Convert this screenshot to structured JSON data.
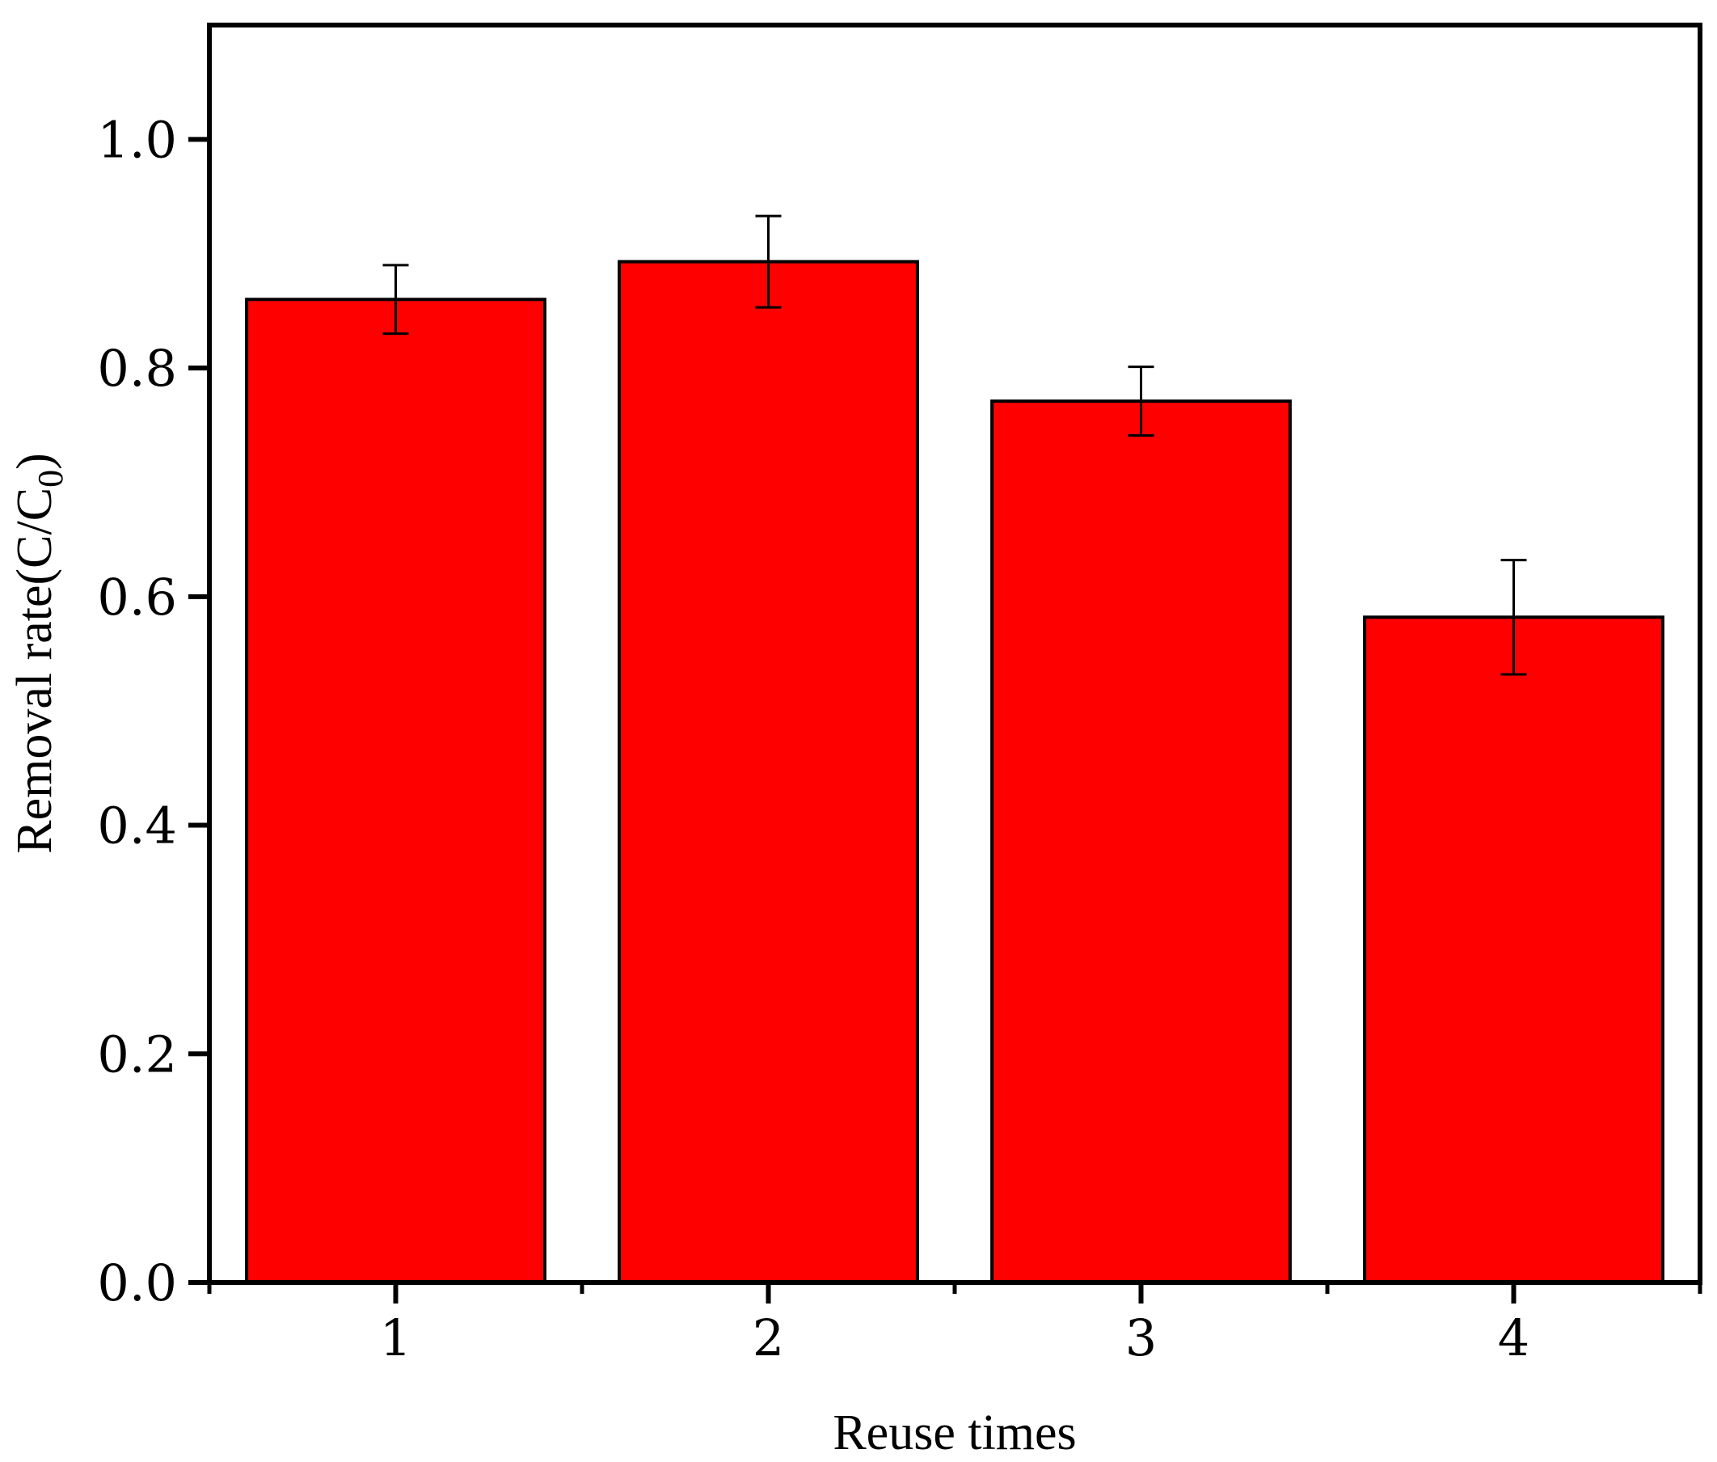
{
  "chart_data": {
    "type": "bar",
    "categories": [
      "1",
      "2",
      "3",
      "4"
    ],
    "values": [
      0.86,
      0.893,
      0.771,
      0.582
    ],
    "errors": [
      0.03,
      0.04,
      0.03,
      0.05
    ],
    "xlabel": "Reuse times",
    "ylabel_main": "Removal rate(C/C",
    "ylabel_sub": "0",
    "ylabel_close": ")",
    "ylim": [
      0,
      1.1
    ],
    "yticks": [
      "0.0",
      "0.2",
      "0.4",
      "0.6",
      "0.8",
      "1.0"
    ],
    "grid": false,
    "bar_color": "#ff0000",
    "edge_color": "#000000"
  }
}
